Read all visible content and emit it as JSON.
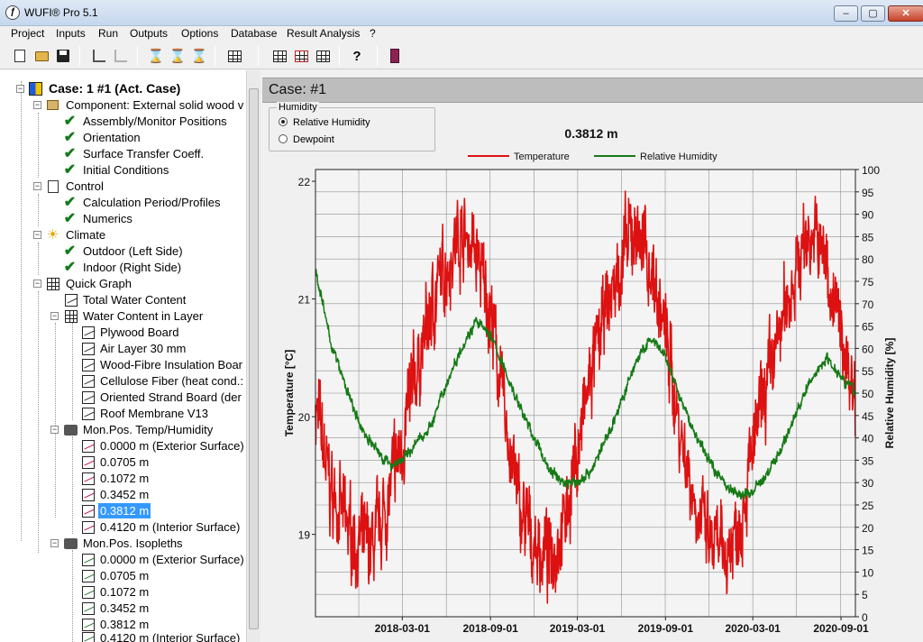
{
  "window": {
    "title": "WUFI® Pro 5.1",
    "minimize_glyph": "–",
    "maximize_glyph": "▢",
    "close_glyph": "✕"
  },
  "menu": [
    "Project",
    "Inputs",
    "Run",
    "Outputs",
    "Options",
    "Database",
    "Result Analysis",
    "?"
  ],
  "toolbar": {
    "buttons": [
      "new-icon",
      "open-folder-icon",
      "save-icon",
      "add-case-icon",
      "remove-case-icon",
      "hourglass-icon",
      "hourglass-run-icon",
      "hourglass-stop-icon",
      "table-icon",
      "grid-icon",
      "grid-red-icon",
      "grid-chart-icon",
      "help-icon",
      "exit-door-icon"
    ],
    "help_glyph": "?"
  },
  "tree": {
    "case": "Case: 1 #1 (Act. Case)",
    "component": "Component: External solid wood v",
    "component_children": [
      "Assembly/Monitor Positions",
      "Orientation",
      "Surface Transfer Coeff.",
      "Initial Conditions"
    ],
    "control": "Control",
    "control_children": [
      "Calculation Period/Profiles",
      "Numerics"
    ],
    "climate": "Climate",
    "climate_children": [
      "Outdoor (Left Side)",
      "Indoor (Right Side)"
    ],
    "quick_graph": "Quick Graph",
    "total_water_content": "Total Water Content",
    "water_content_in_layer": "Water Content in Layer",
    "layers": [
      "Plywood Board",
      "Air Layer 30 mm",
      "Wood-Fibre Insulation Boar",
      "Cellulose Fiber (heat cond.:",
      "Oriented Strand Board (der",
      "Roof Membrane V13"
    ],
    "monpos_temp": "Mon.Pos. Temp/Humidity",
    "monpos_temp_items": [
      "0.0000 m (Exterior Surface)",
      "0.0705 m",
      "0.1072 m",
      "0.3452 m",
      "0.3812 m",
      "0.4120 m (Interior Surface)"
    ],
    "selected_item": "0.3812 m",
    "monpos_iso": "Mon.Pos. Isopleths",
    "monpos_iso_items": [
      "0.0000 m (Exterior Surface)",
      "0.0705 m",
      "0.1072 m",
      "0.3452 m",
      "0.3812 m",
      "0.4120 m (Interior Surface)"
    ],
    "check_glyph": "✔",
    "sun_glyph": "☀",
    "expanded_glyph": "−"
  },
  "right_panel": {
    "case_title": "Case:  #1",
    "humidity_group": {
      "title": "Humidity",
      "options": [
        "Relative Humidity",
        "Dewpoint"
      ],
      "selected": "Relative Humidity"
    }
  },
  "chart_data": {
    "type": "line",
    "title": "0.3812 m",
    "legend": [
      {
        "name": "Temperature",
        "color": "#dd1111"
      },
      {
        "name": "Relative Humidity",
        "color": "#157a15"
      }
    ],
    "legend_position": "top",
    "grid": true,
    "x_ticks": [
      "2018-03-01",
      "2018-09-01",
      "2019-03-01",
      "2019-09-01",
      "2020-03-01",
      "2020-09-01"
    ],
    "x_range": [
      "2017-09-01",
      "2020-10-01"
    ],
    "y_left": {
      "label": "Temperature [°C]",
      "range": [
        18.3,
        22.1
      ],
      "ticks": [
        "19",
        "20",
        "21",
        "22"
      ]
    },
    "y_right": {
      "label": "Relative Humidity [%]",
      "range": [
        0,
        100
      ],
      "ticks": [
        "0",
        "5",
        "10",
        "15",
        "20",
        "25",
        "30",
        "35",
        "40",
        "45",
        "50",
        "55",
        "60",
        "65",
        "70",
        "75",
        "80",
        "85",
        "90",
        "95",
        "100"
      ]
    },
    "series": [
      {
        "name": "Temperature",
        "axis": "left",
        "color": "#dd1111",
        "noise": 0.35,
        "x": [
          "2017-09-01",
          "2017-10-01",
          "2017-11-01",
          "2017-12-01",
          "2018-01-01",
          "2018-02-01",
          "2018-03-01",
          "2018-04-01",
          "2018-05-01",
          "2018-06-01",
          "2018-07-01",
          "2018-08-01",
          "2018-09-01",
          "2018-10-01",
          "2018-11-01",
          "2018-12-01",
          "2019-01-01",
          "2019-02-01",
          "2019-03-01",
          "2019-04-01",
          "2019-05-01",
          "2019-06-01",
          "2019-07-01",
          "2019-08-01",
          "2019-09-01",
          "2019-10-01",
          "2019-11-01",
          "2019-12-01",
          "2020-01-01",
          "2020-02-01",
          "2020-03-01",
          "2020-04-01",
          "2020-05-01",
          "2020-06-01",
          "2020-07-01",
          "2020-08-01",
          "2020-09-01",
          "2020-10-01"
        ],
        "y": [
          20.1,
          19.4,
          19.1,
          18.9,
          18.9,
          19.3,
          19.8,
          20.4,
          20.9,
          21.3,
          21.6,
          21.4,
          20.9,
          20.0,
          19.2,
          18.9,
          18.8,
          19.1,
          19.7,
          20.4,
          20.9,
          21.3,
          21.6,
          21.3,
          20.7,
          19.9,
          19.3,
          18.9,
          18.8,
          19.1,
          19.7,
          20.3,
          20.8,
          21.3,
          21.6,
          21.3,
          20.7,
          20.2
        ]
      },
      {
        "name": "Relative Humidity",
        "axis": "right",
        "color": "#157a15",
        "noise": 1.2,
        "x": [
          "2017-09-01",
          "2017-10-01",
          "2017-11-01",
          "2017-12-01",
          "2018-01-01",
          "2018-02-01",
          "2018-03-01",
          "2018-04-01",
          "2018-05-01",
          "2018-06-01",
          "2018-07-01",
          "2018-08-01",
          "2018-09-01",
          "2018-10-01",
          "2018-11-01",
          "2018-12-01",
          "2019-01-01",
          "2019-02-01",
          "2019-03-01",
          "2019-04-01",
          "2019-05-01",
          "2019-06-01",
          "2019-07-01",
          "2019-08-01",
          "2019-09-01",
          "2019-10-01",
          "2019-11-01",
          "2019-12-01",
          "2020-01-01",
          "2020-02-01",
          "2020-03-01",
          "2020-04-01",
          "2020-05-01",
          "2020-06-01",
          "2020-07-01",
          "2020-08-01",
          "2020-09-01",
          "2020-10-01"
        ],
        "y": [
          78,
          62,
          52,
          43,
          38,
          34,
          35,
          39,
          43,
          52,
          60,
          66,
          63,
          55,
          47,
          40,
          33,
          30,
          30,
          33,
          40,
          48,
          57,
          62,
          58,
          49,
          41,
          35,
          30,
          27,
          28,
          32,
          38,
          46,
          53,
          58,
          54,
          50
        ]
      }
    ]
  }
}
